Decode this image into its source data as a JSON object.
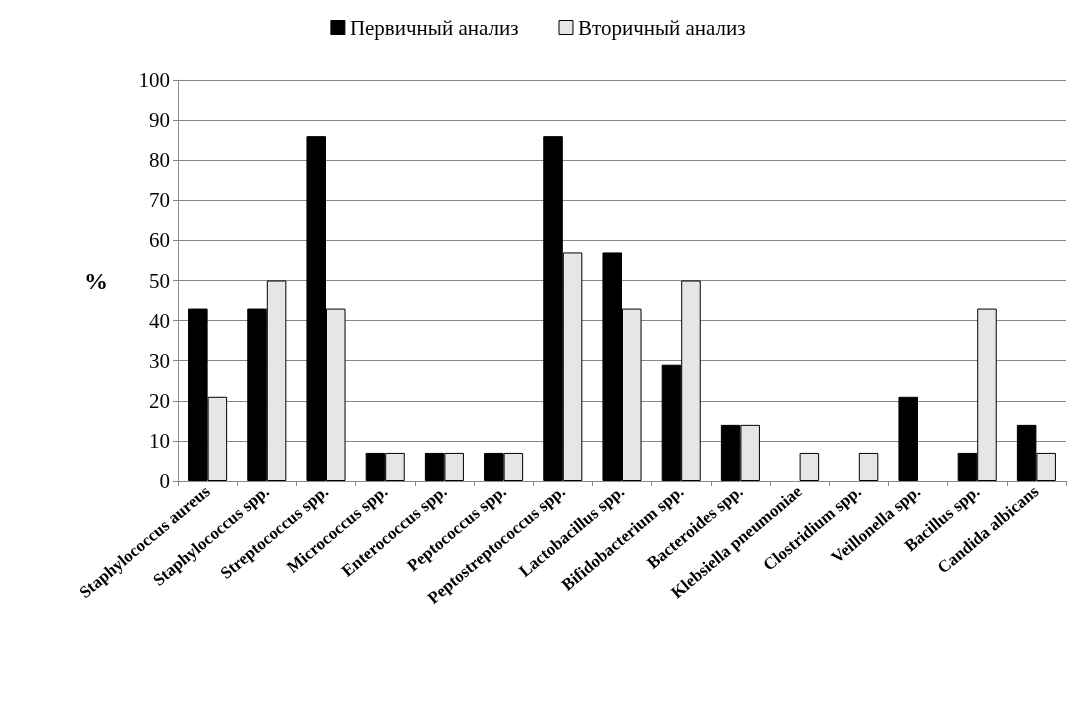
{
  "chart_data": {
    "type": "bar",
    "ylabel": "%",
    "categories": [
      "Staphylococcus aureus",
      "Staphylococcus spp.",
      "Streptococcus spp.",
      "Micrococcus spp.",
      "Enterococcus spp.",
      "Peptococcus spp.",
      "Peptostreptococcus spp.",
      "Lactobacillus spp.",
      "Bifidobacterium spp.",
      "Bacteroides spp.",
      "Klebsiella pneumoniae",
      "Clostridium spp.",
      "Veillonella spp.",
      "Bacillus spp.",
      "Candida albicans"
    ],
    "series": [
      {
        "name": "Первичный анализ",
        "color": "#000000",
        "values": [
          43,
          43,
          86,
          7,
          7,
          7,
          86,
          57,
          29,
          14,
          0,
          0,
          21,
          7,
          14
        ]
      },
      {
        "name": "Вторичный анализ",
        "color": "#e6e6e6",
        "values": [
          21,
          50,
          43,
          7,
          7,
          7,
          57,
          43,
          50,
          14,
          7,
          7,
          0,
          43,
          7
        ]
      }
    ],
    "ylim": [
      0,
      100
    ],
    "yticks": [
      0,
      10,
      20,
      30,
      40,
      50,
      60,
      70,
      80,
      90,
      100
    ],
    "grid": "y",
    "legend": "top"
  }
}
